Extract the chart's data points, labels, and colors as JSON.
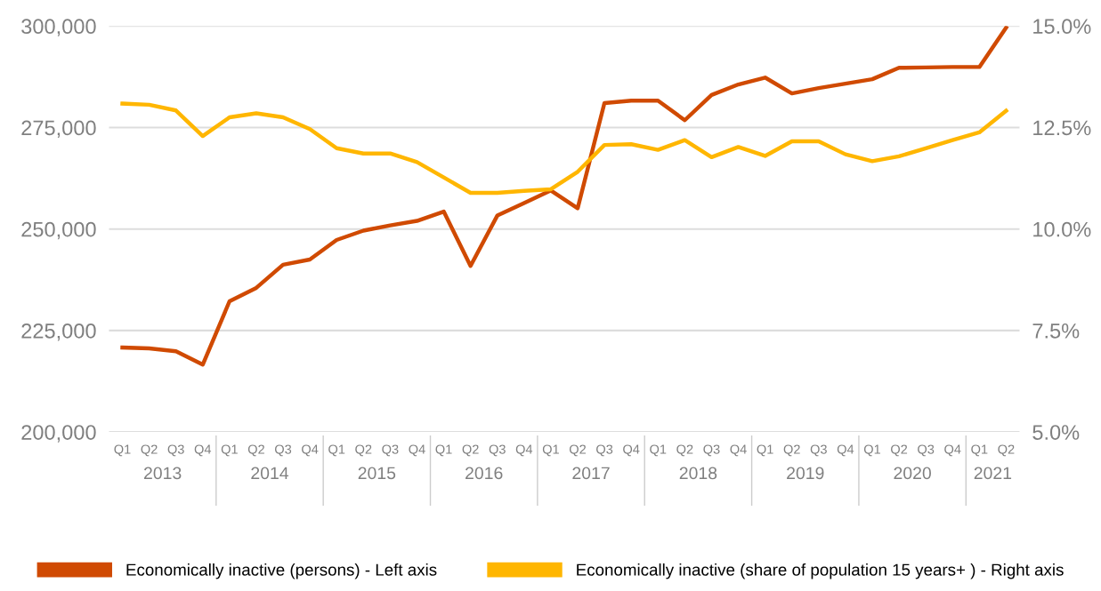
{
  "chart_data": {
    "type": "line",
    "categories": [
      "Q1",
      "Q2",
      "Q3",
      "Q4",
      "Q1",
      "Q2",
      "Q3",
      "Q4",
      "Q1",
      "Q2",
      "Q3",
      "Q4",
      "Q1",
      "Q2",
      "Q3",
      "Q4",
      "Q1",
      "Q2",
      "Q3",
      "Q4",
      "Q1",
      "Q2",
      "Q3",
      "Q4",
      "Q1",
      "Q2",
      "Q3",
      "Q4",
      "Q1",
      "Q2",
      "Q3",
      "Q4",
      "Q1",
      "Q2"
    ],
    "series": [
      {
        "name": "Economically inactive (persons) - Left axis",
        "color": "#d04a02",
        "values": [
          220800,
          220600,
          219900,
          216600,
          232200,
          235500,
          241200,
          242500,
          247300,
          249600,
          250900,
          252000,
          254300,
          240900,
          253300,
          256400,
          259500,
          255100,
          281000,
          281600,
          281600,
          276800,
          283000,
          285600,
          287300,
          283400,
          284700,
          285800,
          286900,
          289700,
          289800,
          289900,
          289900,
          299600
        ]
      },
      {
        "name": "Economically inactive (share of population 15 years+ ) - Right axis",
        "color": "#ffb600",
        "axis": "y2",
        "values": [
          13.09,
          13.06,
          12.92,
          12.29,
          12.75,
          12.85,
          12.75,
          12.46,
          11.99,
          11.86,
          11.86,
          11.65,
          11.27,
          10.89,
          10.89,
          10.94,
          10.98,
          11.41,
          12.07,
          12.09,
          11.95,
          12.19,
          11.77,
          12.02,
          11.8,
          12.16,
          12.16,
          11.84,
          11.67,
          11.79,
          11.99,
          12.19,
          12.38,
          12.91
        ]
      }
    ],
    "ylim": [
      200000,
      300000
    ],
    "yticks": [
      {
        "value": 200000,
        "label": "200,000"
      },
      {
        "value": 225000,
        "label": "225,000"
      },
      {
        "value": 250000,
        "label": "250,000"
      },
      {
        "value": 275000,
        "label": "275,000"
      },
      {
        "value": 300000,
        "label": "300,000"
      }
    ],
    "y2lim": [
      5,
      15
    ],
    "y2ticks": [
      {
        "value": 5,
        "label": "5.0%"
      },
      {
        "value": 7.5,
        "label": "7.5%"
      },
      {
        "value": 10,
        "label": "10.0%"
      },
      {
        "value": 12.5,
        "label": "12.5%"
      },
      {
        "value": 15,
        "label": "15.0%"
      }
    ],
    "annotations": [
      "2013",
      "2014",
      "2015",
      "2016",
      "2017",
      "2018",
      "2019",
      "2020",
      "2021"
    ],
    "grid": "y",
    "legend": "bottom",
    "marker": "none",
    "line_style": "solid"
  }
}
